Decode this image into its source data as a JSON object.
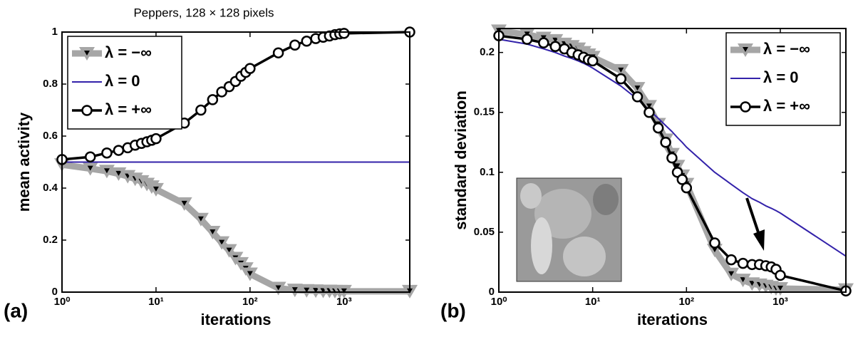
{
  "chart_data": [
    {
      "type": "line",
      "title": "Peppers, 128 × 128 pixels",
      "panel_label": "(a)",
      "x_label": "iterations",
      "y_label": "mean activity",
      "x_scale": "log",
      "legend": "upper left",
      "x": [
        1,
        2,
        3,
        4,
        5,
        6,
        7,
        8,
        9,
        10,
        20,
        30,
        40,
        50,
        60,
        70,
        80,
        90,
        100,
        200,
        300,
        400,
        500,
        600,
        700,
        800,
        900,
        1000,
        5000
      ],
      "xlim": [
        1,
        5000
      ],
      "xticks": [
        {
          "value": 1,
          "label": "10⁰"
        },
        {
          "value": 10,
          "label": "10¹"
        },
        {
          "value": 100,
          "label": "10²"
        },
        {
          "value": 1000,
          "label": "10³"
        }
      ],
      "ylim": [
        0,
        1
      ],
      "yticks": [
        0,
        0.2,
        0.4,
        0.6,
        0.8,
        1
      ],
      "series": [
        {
          "name": "λ = −∞",
          "color": "#a6a6a6",
          "marker": "triangle-down",
          "values": [
            0.49,
            0.475,
            0.465,
            0.455,
            0.445,
            0.435,
            0.425,
            0.415,
            0.405,
            0.395,
            0.34,
            0.28,
            0.23,
            0.19,
            0.16,
            0.13,
            0.11,
            0.09,
            0.07,
            0.015,
            0.008,
            0.006,
            0.005,
            0.004,
            0.004,
            0.003,
            0.003,
            0.003,
            0.003
          ]
        },
        {
          "name": "λ = 0",
          "color": "#3322aa",
          "values": [
            0.5,
            0.5,
            0.5,
            0.5,
            0.5,
            0.5,
            0.5,
            0.5,
            0.5,
            0.5,
            0.5,
            0.5,
            0.5,
            0.5,
            0.5,
            0.5,
            0.5,
            0.5,
            0.5,
            0.5,
            0.5,
            0.5,
            0.5,
            0.5,
            0.5,
            0.5,
            0.5,
            0.5,
            0.5
          ]
        },
        {
          "name": "λ = +∞",
          "color": "#000000",
          "marker": "circle",
          "values": [
            0.51,
            0.52,
            0.535,
            0.545,
            0.555,
            0.565,
            0.572,
            0.578,
            0.584,
            0.59,
            0.65,
            0.7,
            0.74,
            0.77,
            0.79,
            0.81,
            0.83,
            0.845,
            0.86,
            0.92,
            0.95,
            0.965,
            0.975,
            0.98,
            0.985,
            0.99,
            0.993,
            0.995,
            1.0
          ]
        }
      ]
    },
    {
      "type": "line",
      "panel_label": "(b)",
      "x_label": "iterations",
      "y_label": "standard deviation",
      "x_scale": "log",
      "legend": "upper right",
      "x": [
        1,
        2,
        3,
        4,
        5,
        6,
        7,
        8,
        9,
        10,
        20,
        30,
        40,
        50,
        60,
        70,
        80,
        90,
        100,
        200,
        300,
        400,
        500,
        600,
        700,
        800,
        900,
        1000,
        5000
      ],
      "xlim": [
        1,
        5000
      ],
      "xticks": [
        {
          "value": 1,
          "label": "10⁰"
        },
        {
          "value": 10,
          "label": "10¹"
        },
        {
          "value": 100,
          "label": "10²"
        },
        {
          "value": 1000,
          "label": "10³"
        }
      ],
      "ylim": [
        0,
        0.22
      ],
      "yticks": [
        0,
        0.05,
        0.1,
        0.15,
        0.2
      ],
      "series": [
        {
          "name": "λ = −∞",
          "color": "#a6a6a6",
          "marker": "triangle-down",
          "values": [
            0.218,
            0.215,
            0.212,
            0.21,
            0.207,
            0.205,
            0.203,
            0.2,
            0.198,
            0.196,
            0.185,
            0.17,
            0.155,
            0.14,
            0.127,
            0.115,
            0.105,
            0.097,
            0.09,
            0.035,
            0.015,
            0.01,
            0.007,
            0.006,
            0.005,
            0.004,
            0.003,
            0.003,
            0.002
          ]
        },
        {
          "name": "λ = 0",
          "color": "#3322aa",
          "values": [
            0.211,
            0.207,
            0.203,
            0.2,
            0.197,
            0.195,
            0.193,
            0.191,
            0.189,
            0.187,
            0.172,
            0.161,
            0.152,
            0.145,
            0.139,
            0.134,
            0.129,
            0.125,
            0.121,
            0.1,
            0.09,
            0.083,
            0.078,
            0.075,
            0.072,
            0.07,
            0.068,
            0.066,
            0.03
          ]
        },
        {
          "name": "λ = +∞",
          "color": "#000000",
          "marker": "circle",
          "values": [
            0.214,
            0.211,
            0.208,
            0.205,
            0.203,
            0.2,
            0.198,
            0.196,
            0.194,
            0.193,
            0.178,
            0.163,
            0.15,
            0.137,
            0.125,
            0.112,
            0.1,
            0.094,
            0.087,
            0.041,
            0.027,
            0.024,
            0.023,
            0.023,
            0.022,
            0.021,
            0.019,
            0.014,
            0.001
          ]
        }
      ]
    }
  ]
}
